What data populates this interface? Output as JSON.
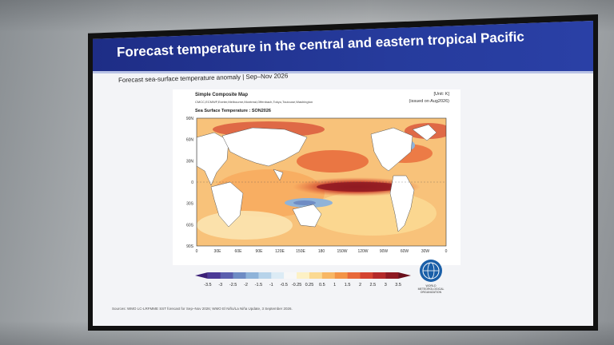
{
  "slide": {
    "title": "Forecast temperature in the central and eastern tropical Pacific",
    "subtitle": "Forecast sea-surface temperature anomaly | Sep–Nov 2026",
    "sources": "Sources: WMO LC-LRFMME SST forecast for Sep–Nov 2026; WMO El Niño/La Niña Update, 3 September 2026."
  },
  "map_panel": {
    "title": "Simple Composite Map",
    "models": "CMCC,ECMWF,Exeter,Melbourne,Montreal,Offenbach,Tokyo,Toulouse,Washington",
    "unit": "[Unit: K]",
    "issued": "(issued on Aug2026)",
    "field": "Sea Surface Temperature : SON2026",
    "lat_labels": [
      "90N",
      "60N",
      "30N",
      "0",
      "30S",
      "60S",
      "90S"
    ],
    "lon_labels": [
      "0",
      "30E",
      "60E",
      "90E",
      "120E",
      "150E",
      "180",
      "150W",
      "120W",
      "90W",
      "60W",
      "30W",
      "0"
    ]
  },
  "colorbar": {
    "labels": [
      "-3.5",
      "-3",
      "-2.5",
      "-2",
      "-1.5",
      "-1",
      "-0.5",
      "-0.25",
      "0.25",
      "0.5",
      "1",
      "1.5",
      "2",
      "2.5",
      "3",
      "3.5"
    ],
    "colors": [
      "#3b1f77",
      "#4b3a96",
      "#5b5fae",
      "#6f8cc4",
      "#8fb3d9",
      "#b7d3ea",
      "#dcebf5",
      "#f7f7f7",
      "#fdf1c5",
      "#fbd992",
      "#f8b765",
      "#f39447",
      "#e8693a",
      "#d44331",
      "#b42a2a",
      "#8f1a22",
      "#6a0f1b"
    ]
  },
  "logo": {
    "icon": "wmo-emblem-icon",
    "label": "WORLD METEOROLOGICAL ORGANIZATION"
  }
}
